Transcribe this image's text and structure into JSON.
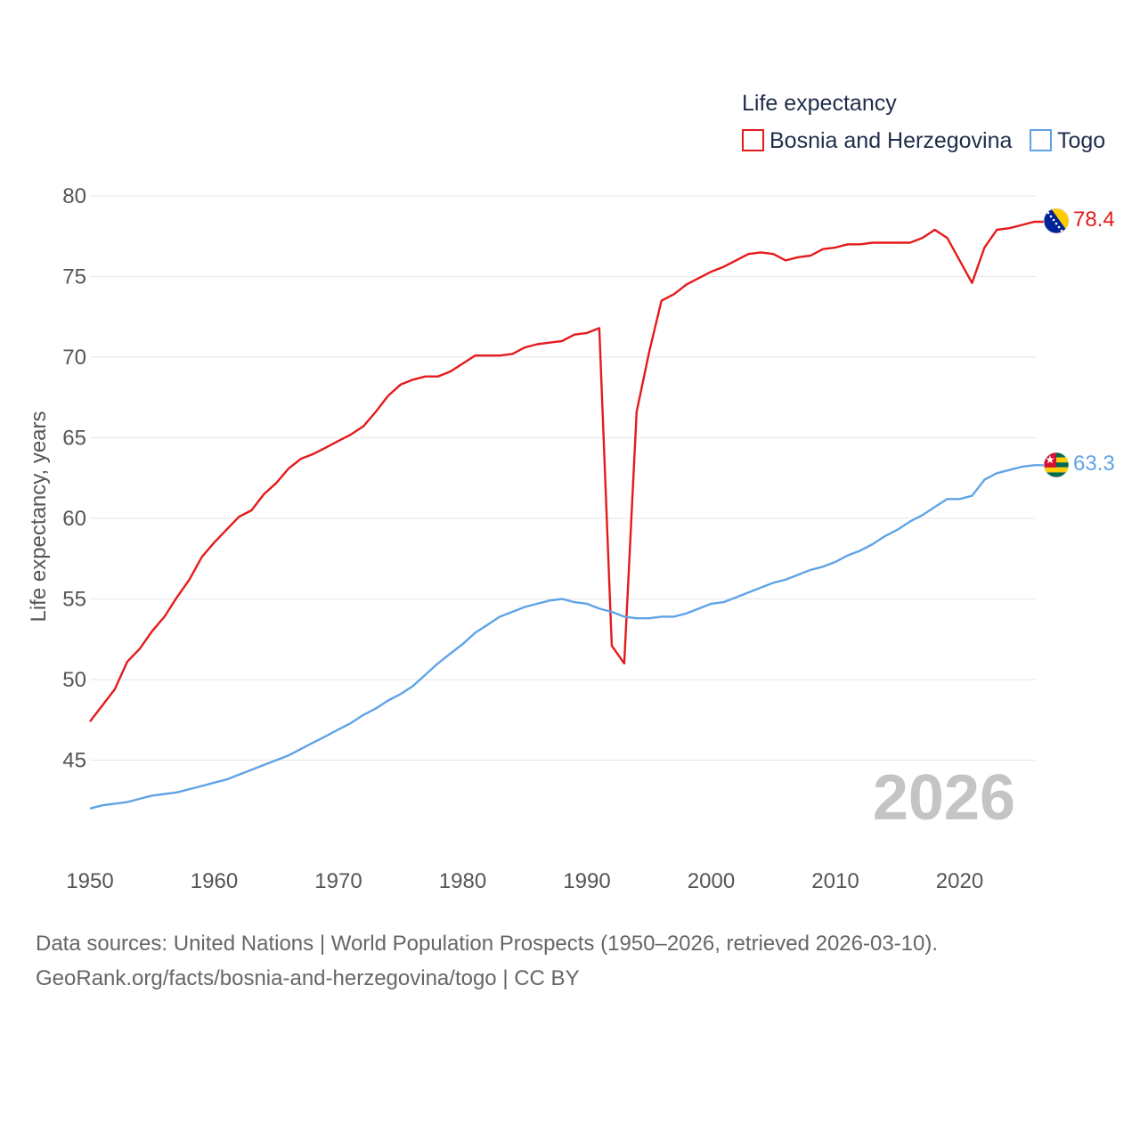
{
  "chart_data": {
    "type": "line",
    "ylabel": "Life expectancy, years",
    "xlabel": "",
    "xlim": [
      1950,
      2026
    ],
    "ylim": [
      41,
      81
    ],
    "x_ticks": [
      1950,
      1960,
      1970,
      1980,
      1990,
      2000,
      2010,
      2020
    ],
    "y_ticks": [
      45,
      50,
      55,
      60,
      65,
      70,
      75,
      80
    ],
    "grid": true,
    "current_year_label": "2026",
    "legend": {
      "title": "Life expectancy",
      "position": "top-right",
      "entries": [
        "Bosnia and Herzegovina",
        "Togo"
      ]
    },
    "series": [
      {
        "name": "Bosnia and Herzegovina",
        "color": "#e41a1c",
        "end_value_label": "78.4",
        "flag_icon": "bosnia-flag-icon",
        "x": [
          1950,
          1951,
          1952,
          1953,
          1954,
          1955,
          1956,
          1957,
          1958,
          1959,
          1960,
          1961,
          1962,
          1963,
          1964,
          1965,
          1966,
          1967,
          1968,
          1969,
          1970,
          1971,
          1972,
          1973,
          1974,
          1975,
          1976,
          1977,
          1978,
          1979,
          1980,
          1981,
          1982,
          1983,
          1984,
          1985,
          1986,
          1987,
          1988,
          1989,
          1990,
          1991,
          1992,
          1993,
          1994,
          1995,
          1996,
          1997,
          1998,
          1999,
          2000,
          2001,
          2002,
          2003,
          2004,
          2005,
          2006,
          2007,
          2008,
          2009,
          2010,
          2011,
          2012,
          2013,
          2014,
          2015,
          2016,
          2017,
          2018,
          2019,
          2020,
          2021,
          2022,
          2023,
          2024,
          2025,
          2026
        ],
        "values": [
          47.4,
          48.4,
          49.4,
          51.1,
          51.9,
          53.0,
          53.9,
          55.1,
          56.2,
          57.6,
          58.5,
          59.3,
          60.1,
          60.5,
          61.5,
          62.2,
          63.1,
          63.7,
          64.0,
          64.4,
          64.8,
          65.2,
          65.7,
          66.6,
          67.6,
          68.3,
          68.6,
          68.8,
          68.8,
          69.1,
          69.6,
          70.1,
          70.1,
          70.1,
          70.2,
          70.6,
          70.8,
          70.9,
          71.0,
          71.4,
          71.5,
          71.8,
          52.1,
          51.0,
          66.6,
          70.3,
          73.5,
          73.9,
          74.5,
          74.9,
          75.3,
          75.6,
          76.0,
          76.4,
          76.5,
          76.4,
          76.0,
          76.2,
          76.3,
          76.7,
          76.8,
          77.0,
          77.0,
          77.1,
          77.1,
          77.1,
          77.1,
          77.4,
          77.9,
          77.4,
          76.0,
          74.6,
          76.8,
          77.9,
          78.0,
          78.2,
          78.4
        ]
      },
      {
        "name": "Togo",
        "color": "#5fa3e6",
        "end_value_label": "63.3",
        "flag_icon": "togo-flag-icon",
        "x": [
          1950,
          1951,
          1952,
          1953,
          1954,
          1955,
          1956,
          1957,
          1958,
          1959,
          1960,
          1961,
          1962,
          1963,
          1964,
          1965,
          1966,
          1967,
          1968,
          1969,
          1970,
          1971,
          1972,
          1973,
          1974,
          1975,
          1976,
          1977,
          1978,
          1979,
          1980,
          1981,
          1982,
          1983,
          1984,
          1985,
          1986,
          1987,
          1988,
          1989,
          1990,
          1991,
          1992,
          1993,
          1994,
          1995,
          1996,
          1997,
          1998,
          1999,
          2000,
          2001,
          2002,
          2003,
          2004,
          2005,
          2006,
          2007,
          2008,
          2009,
          2010,
          2011,
          2012,
          2013,
          2014,
          2015,
          2016,
          2017,
          2018,
          2019,
          2020,
          2021,
          2022,
          2023,
          2024,
          2025,
          2026
        ],
        "values": [
          42.0,
          42.2,
          42.3,
          42.4,
          42.6,
          42.8,
          42.9,
          43.0,
          43.2,
          43.4,
          43.6,
          43.8,
          44.1,
          44.4,
          44.7,
          45.0,
          45.3,
          45.7,
          46.1,
          46.5,
          46.9,
          47.3,
          47.8,
          48.2,
          48.7,
          49.1,
          49.6,
          50.3,
          51.0,
          51.6,
          52.2,
          52.9,
          53.4,
          53.9,
          54.2,
          54.5,
          54.7,
          54.9,
          55.0,
          54.8,
          54.7,
          54.4,
          54.2,
          53.9,
          53.8,
          53.8,
          53.9,
          53.9,
          54.1,
          54.4,
          54.7,
          54.8,
          55.1,
          55.4,
          55.7,
          56.0,
          56.2,
          56.5,
          56.8,
          57.0,
          57.3,
          57.7,
          58.0,
          58.4,
          58.9,
          59.3,
          59.8,
          60.2,
          60.7,
          61.2,
          61.2,
          61.4,
          62.4,
          62.8,
          63.0,
          63.2,
          63.3
        ]
      }
    ]
  },
  "footer": {
    "source": "Data sources: United Nations | World Population Prospects (1950–2026, retrieved 2026-03-10).",
    "attribution": "GeoRank.org/facts/bosnia-and-herzegovina/togo | CC BY"
  }
}
